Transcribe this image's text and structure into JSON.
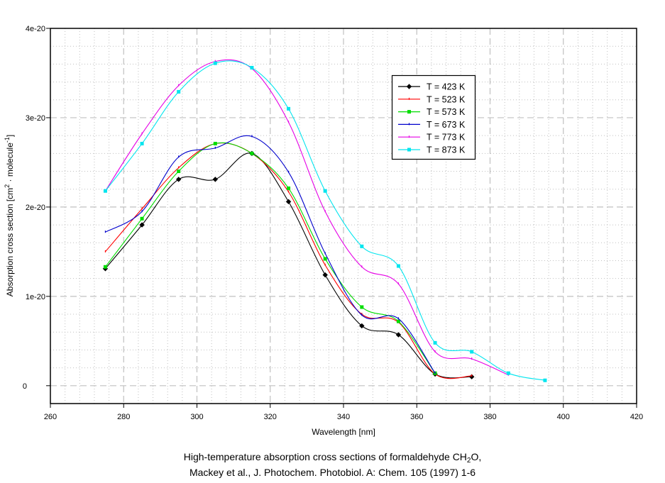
{
  "chart_data": {
    "type": "line",
    "title": "",
    "caption": {
      "line1_prefix": "High-temperature absorption cross sections of formaldehyde CH",
      "line1_sub": "2",
      "line1_suffix": "O,",
      "line2": "Mackey et al., J. Photochem. Photobiol. A: Chem. 105 (1997) 1-6"
    },
    "xlabel": "Wavelength [nm]",
    "ylabel": {
      "prefix": "Absorption cross section  [cm",
      "sup1": "2",
      "middle": " · molecule",
      "sup2": "-1",
      "suffix": "]"
    },
    "xlim": [
      260,
      420
    ],
    "ylim": [
      -2e-21,
      4e-20
    ],
    "x_ticks": [
      260,
      280,
      300,
      320,
      340,
      360,
      380,
      400,
      420
    ],
    "x_tick_labels": [
      "260",
      "280",
      "300",
      "320",
      "340",
      "360",
      "380",
      "400",
      "420"
    ],
    "y_ticks": [
      0,
      1e-20,
      2e-20,
      3e-20,
      4e-20
    ],
    "y_tick_labels": [
      "0",
      "1e-20",
      "2e-20",
      "3e-20",
      "4e-20"
    ],
    "grid": true,
    "legend_position": "upper-right",
    "series": [
      {
        "name": "T = 423 K",
        "color": "#000000",
        "marker": "diamond",
        "x": [
          275,
          285,
          295,
          305,
          315,
          325,
          335,
          345,
          355,
          365,
          375
        ],
        "y": [
          1.31e-20,
          1.8e-20,
          2.31e-20,
          2.31e-20,
          2.6e-20,
          2.06e-20,
          1.24e-20,
          6.7e-21,
          5.7e-21,
          1.3e-21,
          1e-21
        ]
      },
      {
        "name": "T = 523 K",
        "color": "#ff0000",
        "marker": "tick",
        "x": [
          275,
          285,
          295,
          305,
          315,
          325,
          335,
          345,
          355,
          365,
          375
        ],
        "y": [
          1.5e-20,
          1.98e-20,
          2.44e-20,
          2.71e-20,
          2.6e-20,
          2.17e-20,
          1.35e-20,
          8e-21,
          7.1e-21,
          1.3e-21,
          1.1e-21
        ]
      },
      {
        "name": "T = 573 K",
        "color": "#00dd00",
        "marker": "square",
        "x": [
          275,
          285,
          295,
          305,
          315,
          325,
          335,
          345,
          355,
          365
        ],
        "y": [
          1.33e-20,
          1.87e-20,
          2.4e-20,
          2.71e-20,
          2.6e-20,
          2.21e-20,
          1.42e-20,
          8.8e-21,
          7.2e-21,
          1.4e-21
        ]
      },
      {
        "name": "T = 673 K",
        "color": "#0000cc",
        "marker": "tick",
        "x": [
          275,
          285,
          295,
          305,
          315,
          325,
          335,
          345,
          355,
          365
        ],
        "y": [
          1.72e-20,
          1.95e-20,
          2.56e-20,
          2.66e-20,
          2.79e-20,
          2.39e-20,
          1.48e-20,
          7.9e-21,
          7.5e-21,
          1.4e-21
        ]
      },
      {
        "name": "T = 773 K",
        "color": "#e600e6",
        "marker": "tick",
        "x": [
          275,
          285,
          295,
          305,
          315,
          325,
          335,
          345,
          355,
          365,
          375,
          385
        ],
        "y": [
          2.18e-20,
          2.82e-20,
          3.36e-20,
          3.63e-20,
          3.55e-20,
          2.95e-20,
          1.95e-20,
          1.33e-20,
          1.14e-20,
          3.8e-21,
          3e-21,
          1.2e-21
        ]
      },
      {
        "name": "T = 873 K",
        "color": "#00e5ee",
        "marker": "square",
        "x": [
          275,
          285,
          295,
          305,
          315,
          325,
          335,
          345,
          355,
          365,
          375,
          385,
          395
        ],
        "y": [
          2.18e-20,
          2.71e-20,
          3.29e-20,
          3.61e-20,
          3.56e-20,
          3.1e-20,
          2.18e-20,
          1.56e-20,
          1.34e-20,
          4.8e-21,
          3.8e-21,
          1.4e-21,
          6e-22
        ]
      }
    ]
  }
}
